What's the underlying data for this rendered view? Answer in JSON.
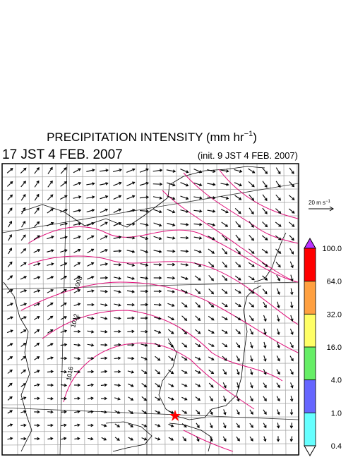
{
  "title": {
    "text": "PRECIPITATION INTENSITY (mm hr",
    "exponent": "−1",
    "close": ")"
  },
  "valid_time": "17 JST 4 FEB. 2007",
  "init_time": "(init. 9 JST 4 FEB. 2007)",
  "wind_scale": {
    "text": "20 m s",
    "exponent": "−1"
  },
  "colorbar": {
    "labels": [
      "100.0",
      "64.0",
      "32.0",
      "16.0",
      "4.0",
      "1.0",
      "0.4"
    ],
    "colors": [
      "#ff0000",
      "#ffa040",
      "#ffff66",
      "#66ee66",
      "#6666ff",
      "#66ffff"
    ],
    "over_color": "#bb33ff",
    "under_color": "#ffffff"
  },
  "contour_labels": [
    "1008",
    "1012",
    "1016"
  ]
}
